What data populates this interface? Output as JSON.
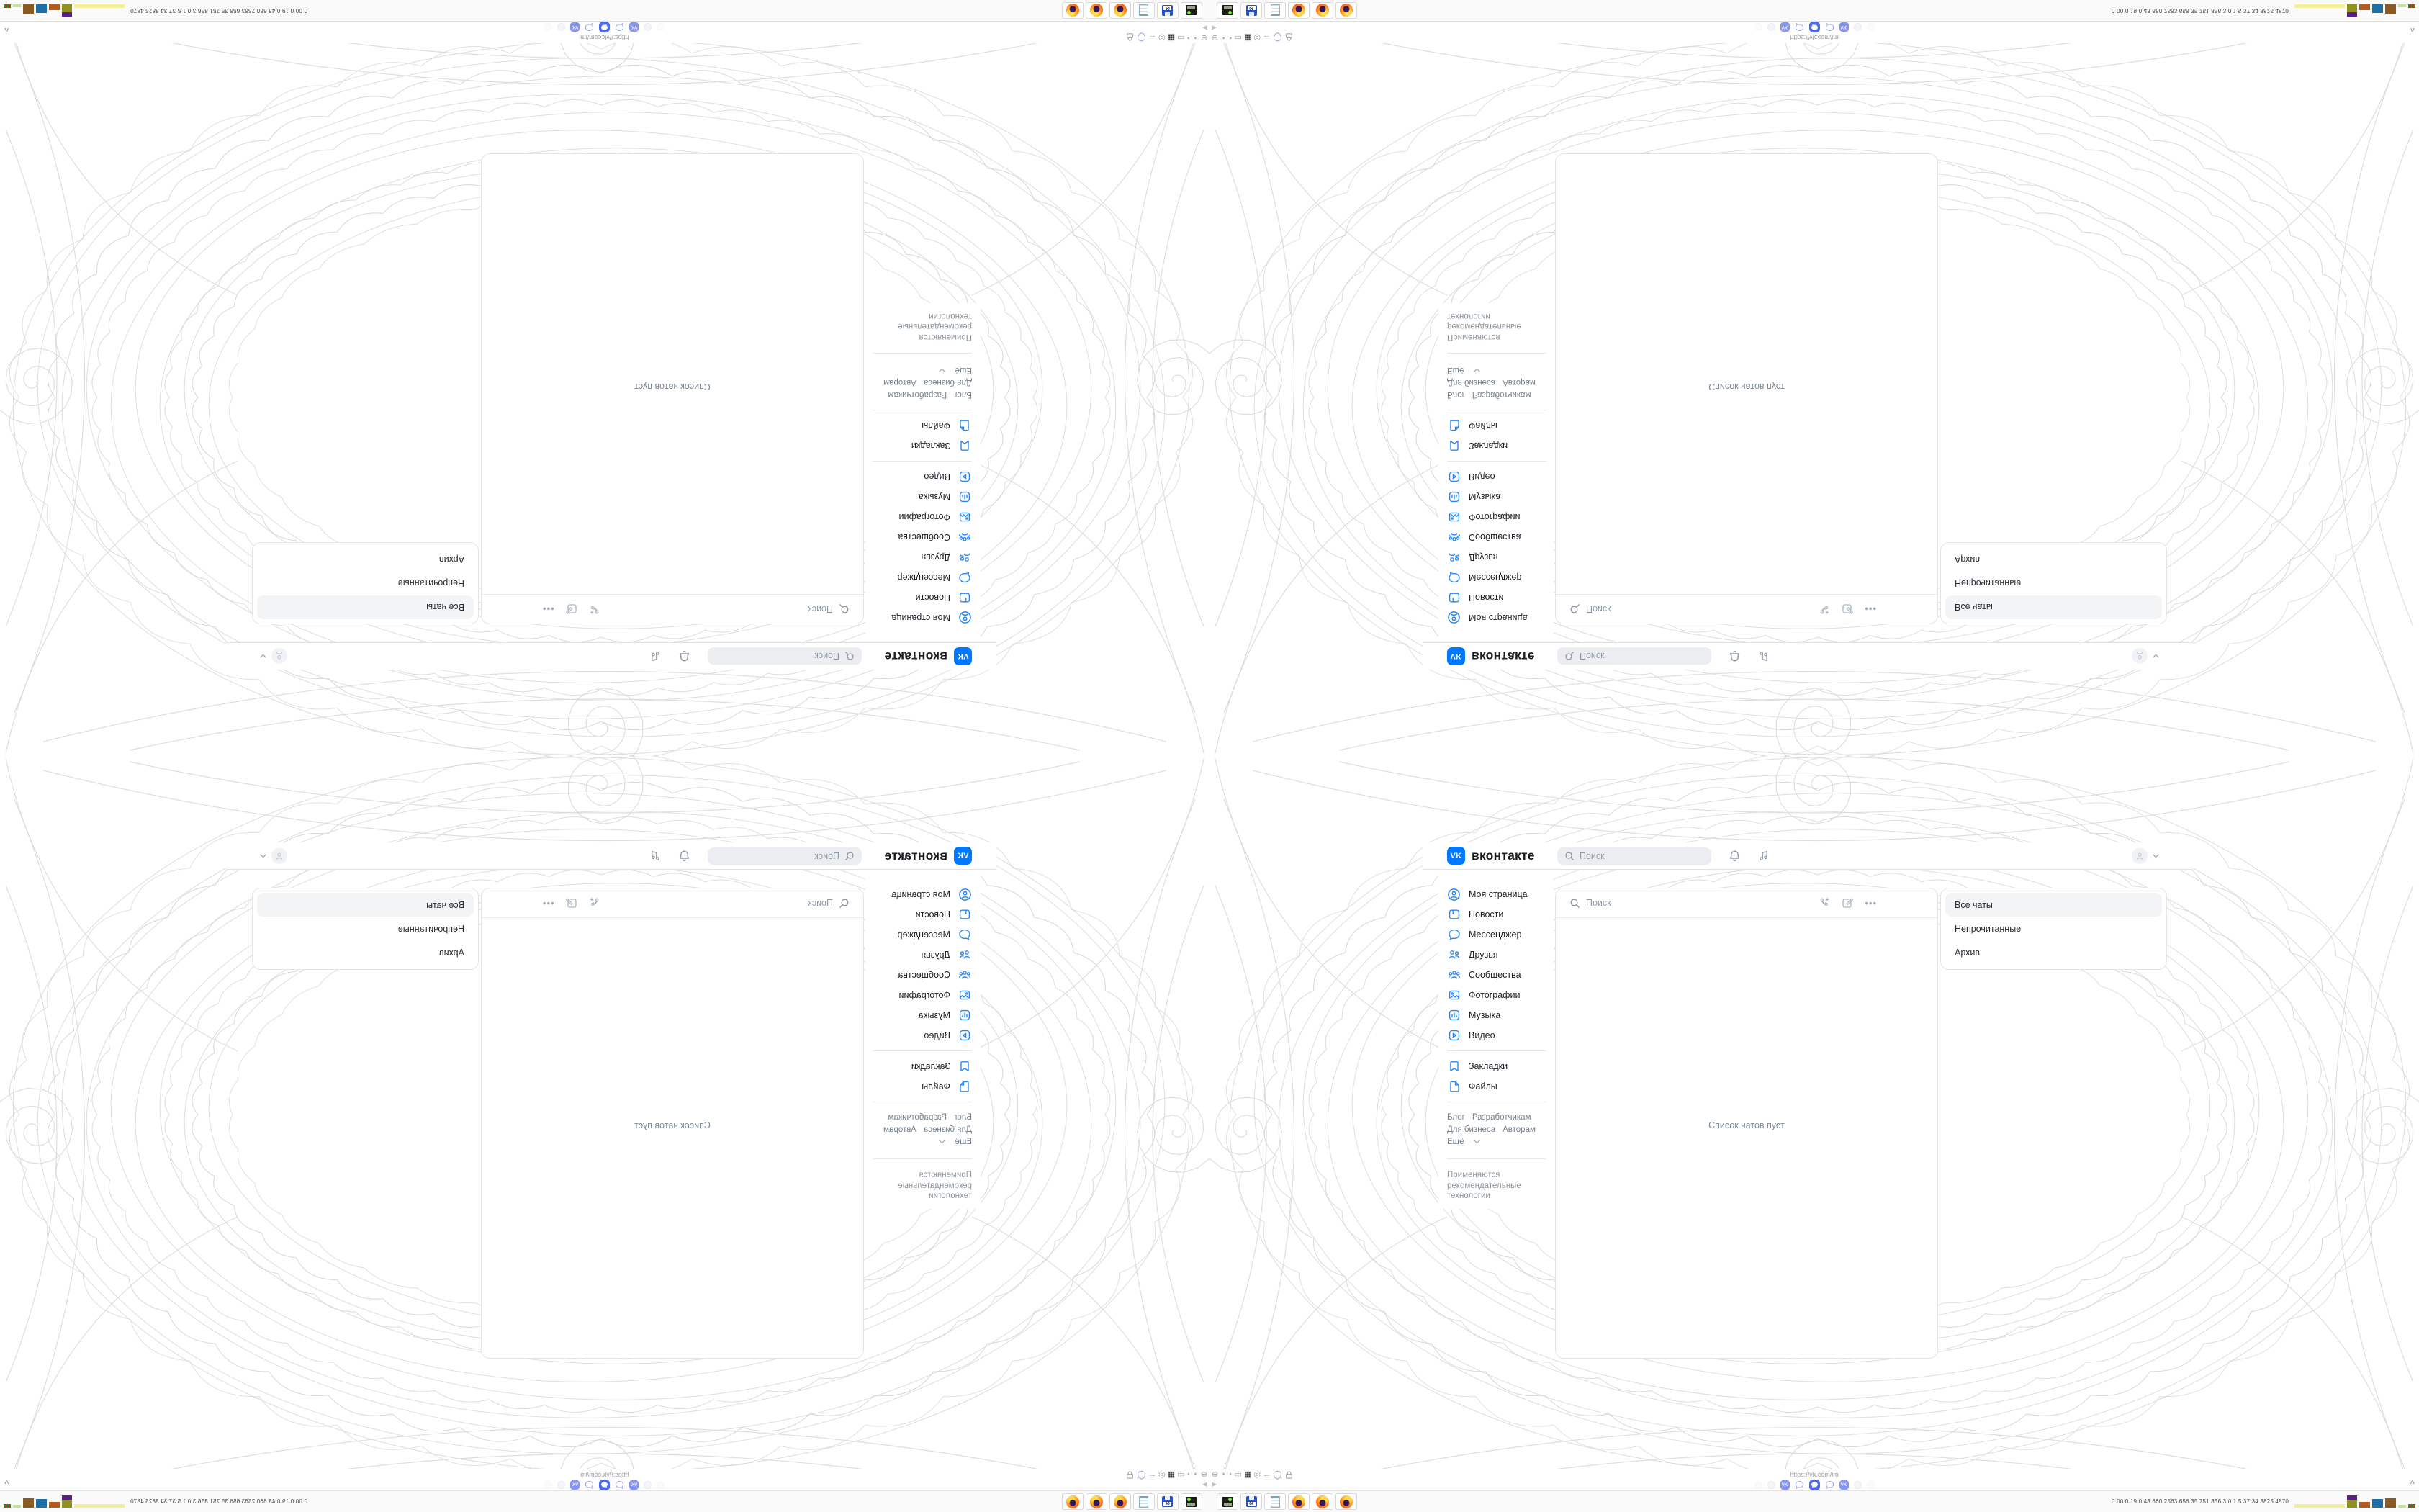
{
  "colors": {
    "vk_blue": "#0077ff",
    "nav_icon_blue": "#2787f5",
    "lace_gray": "#d6d6d6",
    "active_tab_blue": "#4f6bed"
  },
  "browser": {
    "url": "https://vk.com/im",
    "toolbar_icons": [
      "globe-icon",
      "gauge-icon",
      "gauge-icon",
      "folder-icon",
      "grid-icon",
      "badge-icon",
      "back-arrow-icon",
      "shield-icon",
      "lock-icon"
    ],
    "dock_tabs": [
      "ghost-tab",
      "ghost-tab",
      "vk-tab",
      "chat-tab",
      "chat-tab-active",
      "chat-tab",
      "vk-tab",
      "ghost-tab",
      "ghost-tab"
    ],
    "play_glyph": "▶",
    "expand_glyph": "^"
  },
  "taskbar": {
    "apps": [
      "console-app",
      "installer-64",
      "notepad",
      "firefox",
      "firefox",
      "firefox"
    ],
    "floppy_label": "64",
    "stats": "0.00 0.19 0.43  660  2563  656  35  751  856  3.0  1.5  37  34  3825 4870"
  },
  "vk": {
    "logo_badge": "VK",
    "brand": "вконтакте",
    "header_search": "Поиск",
    "nav": [
      "Моя страница",
      "Новости",
      "Мессенджер",
      "Друзья",
      "Сообщества",
      "Фотографии",
      "Музыка",
      "Видео",
      "Закладки",
      "Файлы"
    ],
    "links": [
      "Блог",
      "Разработчикам",
      "Для бизнеса",
      "Авторам",
      "Ещё"
    ],
    "note": "Применяются рекомендательные технологии",
    "chat_search": "Поиск",
    "chats_empty": "Список чатов пуст",
    "folders": [
      "Все чаты",
      "Непрочитанные",
      "Архив"
    ]
  }
}
